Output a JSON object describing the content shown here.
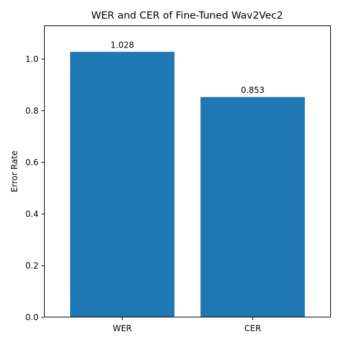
{
  "chart_data": {
    "type": "bar",
    "title": "WER and CER of Fine-Tuned Wav2Vec2",
    "xlabel": "",
    "ylabel": "Error Rate",
    "categories": [
      "WER",
      "CER"
    ],
    "values": [
      1.028,
      0.853
    ],
    "data_labels": [
      "1.028",
      "0.853"
    ],
    "ylim": [
      0,
      1.13
    ],
    "yticks": [
      0.0,
      0.2,
      0.4,
      0.6,
      0.8,
      1.0
    ],
    "ytick_labels": [
      "0.0",
      "0.2",
      "0.4",
      "0.6",
      "0.8",
      "1.0"
    ],
    "grid": false,
    "legend": "none",
    "bar_color": "#1f77b4"
  }
}
